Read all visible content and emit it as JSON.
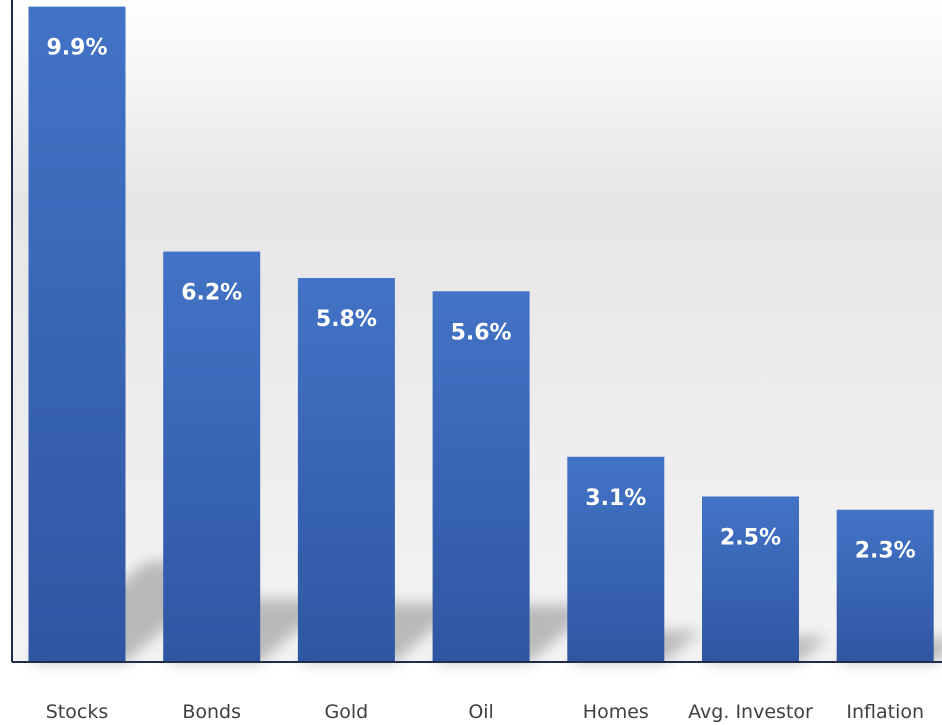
{
  "chart_data": {
    "type": "bar",
    "categories": [
      "Stocks",
      "Bonds",
      "Gold",
      "Oil",
      "Homes",
      "Avg. Investor",
      "Inflation"
    ],
    "values": [
      9.9,
      6.2,
      5.8,
      5.6,
      3.1,
      2.5,
      2.3
    ],
    "value_labels": [
      "9.9%",
      "6.2%",
      "5.8%",
      "5.6%",
      "3.1%",
      "2.5%",
      "2.3%"
    ],
    "title": "",
    "xlabel": "",
    "ylabel": "",
    "ylim": [
      0,
      10
    ],
    "grid": false,
    "legend": "none",
    "bar_color": "#3d6cc0"
  }
}
